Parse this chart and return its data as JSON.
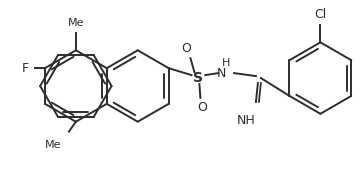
{
  "bg_color": "#ffffff",
  "line_color": "#2d2d2d",
  "line_width": 1.4,
  "figsize": [
    3.64,
    1.72
  ],
  "dpi": 100,
  "xlim": [
    0,
    364
  ],
  "ylim": [
    0,
    172
  ]
}
